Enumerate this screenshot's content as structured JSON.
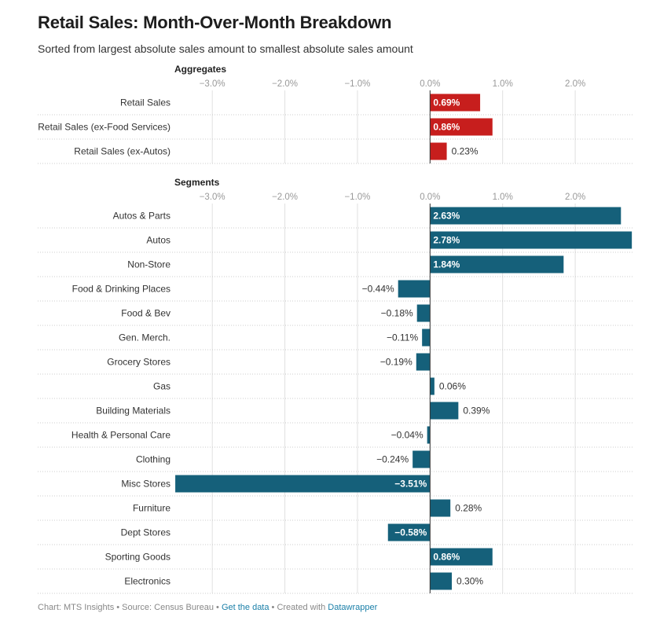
{
  "title": "Retail Sales: Month-Over-Month Breakdown",
  "subtitle": "Sorted from largest absolute sales amount to smallest absolute sales amount",
  "footer": {
    "chart_by": "Chart: MTS Insights",
    "separator": " • ",
    "source": "Source: Census Bureau",
    "get_data": "Get the data",
    "created_with": "Created with",
    "datawrapper": "Datawrapper"
  },
  "colors": {
    "aggregates_bar": "#c71e1d",
    "segments_bar": "#15607a",
    "grid": "#e0e0e0",
    "axis_label": "#999999"
  },
  "chart_data": [
    {
      "type": "bar",
      "orientation": "horizontal",
      "title": "Aggregates",
      "unit": "%",
      "xlim": [
        -3.5,
        2.8
      ],
      "ticks": [
        -3.0,
        -2.0,
        -1.0,
        0.0,
        1.0,
        2.0
      ],
      "tick_labels": [
        "−3.0%",
        "−2.0%",
        "−1.0%",
        "0.0%",
        "1.0%",
        "2.0%"
      ],
      "categories": [
        "Retail Sales",
        "Retail Sales (ex-Food Services)",
        "Retail Sales (ex-Autos)"
      ],
      "values": [
        0.69,
        0.86,
        0.23
      ],
      "value_labels": [
        "0.69%",
        "0.86%",
        "0.23%"
      ]
    },
    {
      "type": "bar",
      "orientation": "horizontal",
      "title": "Segments",
      "unit": "%",
      "xlim": [
        -3.5,
        2.8
      ],
      "ticks": [
        -3.0,
        -2.0,
        -1.0,
        0.0,
        1.0,
        2.0
      ],
      "tick_labels": [
        "−3.0%",
        "−2.0%",
        "−1.0%",
        "0.0%",
        "1.0%",
        "2.0%"
      ],
      "categories": [
        "Autos & Parts",
        "Autos",
        "Non-Store",
        "Food & Drinking Places",
        "Food & Bev",
        "Gen. Merch.",
        "Grocery Stores",
        "Gas",
        "Building Materials",
        "Health & Personal Care",
        "Clothing",
        "Misc Stores",
        "Furniture",
        "Dept Stores",
        "Sporting Goods",
        "Electronics"
      ],
      "values": [
        2.63,
        2.78,
        1.84,
        -0.44,
        -0.18,
        -0.11,
        -0.19,
        0.06,
        0.39,
        -0.04,
        -0.24,
        -3.51,
        0.28,
        -0.58,
        0.86,
        0.3
      ],
      "value_labels": [
        "2.63%",
        "2.78%",
        "1.84%",
        "−0.44%",
        "−0.18%",
        "−0.11%",
        "−0.19%",
        "0.06%",
        "0.39%",
        "−0.04%",
        "−0.24%",
        "−3.51%",
        "0.28%",
        "−0.58%",
        "0.86%",
        "0.30%"
      ]
    }
  ]
}
